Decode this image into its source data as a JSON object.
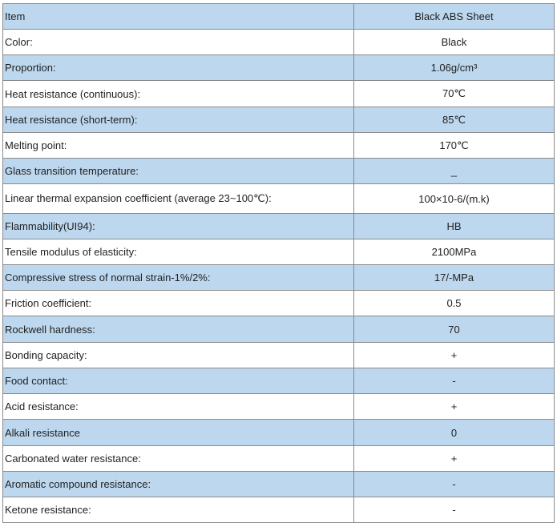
{
  "table": {
    "header": {
      "item": "Item",
      "value": "Black ABS Sheet"
    },
    "rows": [
      {
        "item": "Color:",
        "value": "Black"
      },
      {
        "item": "Proportion:",
        "value": "1.06g/cm³"
      },
      {
        "item": "Heat resistance (continuous):",
        "value": "70℃"
      },
      {
        "item": "Heat resistance (short-term):",
        "value": "85℃"
      },
      {
        "item": "Melting point:",
        "value": "170℃"
      },
      {
        "item": "Glass transition temperature:",
        "value": "_"
      },
      {
        "item": "Linear thermal expansion coefficient (average 23~100℃):",
        "value": "100×10-6/(m.k)"
      },
      {
        "item": "Flammability(UI94):",
        "value": "HB"
      },
      {
        "item": "Tensile modulus of elasticity:",
        "value": "2100MPa"
      },
      {
        "item": "Compressive stress of normal strain-1%/2%:",
        "value": "17/-MPa"
      },
      {
        "item": "Friction coefficient:",
        "value": "0.5"
      },
      {
        "item": "Rockwell hardness:",
        "value": "70"
      },
      {
        "item": "Bonding capacity:",
        "value": "+"
      },
      {
        "item": "Food contact:",
        "value": "-"
      },
      {
        "item": "Acid resistance:",
        "value": "+"
      },
      {
        "item": "Alkali resistance",
        "value": "0"
      },
      {
        "item": "Carbonated water resistance:",
        "value": "+"
      },
      {
        "item": "Aromatic compound resistance:",
        "value": "-"
      },
      {
        "item": "Ketone resistance:",
        "value": "-"
      }
    ]
  },
  "colors": {
    "alt_row": "#bcd7ee",
    "plain_row": "#ffffff",
    "border": "#8a8a8a",
    "text": "#222222"
  }
}
